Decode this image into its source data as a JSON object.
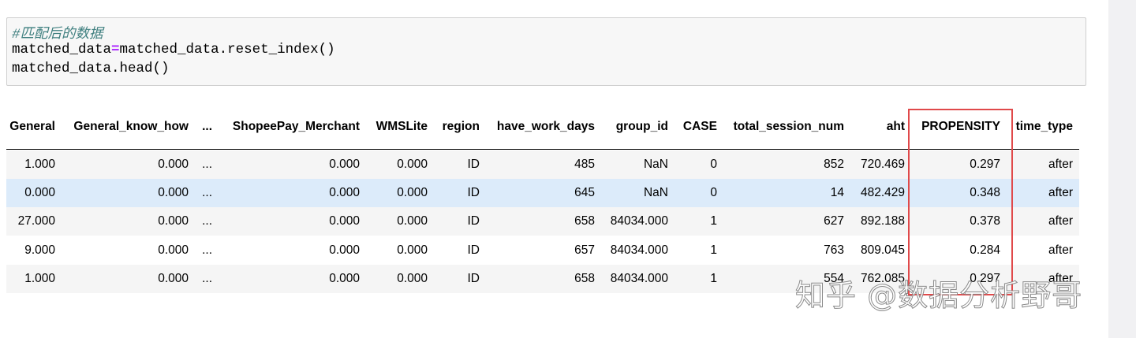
{
  "code": {
    "comment": "#匹配后的数据",
    "lines": [
      [
        "matched_data",
        "=",
        "matched_data.reset_index()"
      ],
      [
        "matched_data.head()"
      ]
    ]
  },
  "table": {
    "header": [
      "General",
      "General_know_how",
      "...",
      "ShopeePay_Merchant",
      "WMSLite",
      "region",
      "have_work_days",
      "group_id",
      "CASE",
      "total_session_num",
      "aht",
      "PROPENSITY",
      "time_type"
    ],
    "rows": [
      [
        "1.000",
        "0.000",
        "...",
        "0.000",
        "0.000",
        "ID",
        "485",
        "NaN",
        "0",
        "852",
        "720.469",
        "0.297",
        "after"
      ],
      [
        "0.000",
        "0.000",
        "...",
        "0.000",
        "0.000",
        "ID",
        "645",
        "NaN",
        "0",
        "14",
        "482.429",
        "0.348",
        "after"
      ],
      [
        "27.000",
        "0.000",
        "...",
        "0.000",
        "0.000",
        "ID",
        "658",
        "84034.000",
        "1",
        "627",
        "892.188",
        "0.378",
        "after"
      ],
      [
        "9.000",
        "0.000",
        "...",
        "0.000",
        "0.000",
        "ID",
        "657",
        "84034.000",
        "1",
        "763",
        "809.045",
        "0.284",
        "after"
      ],
      [
        "1.000",
        "0.000",
        "...",
        "0.000",
        "0.000",
        "ID",
        "658",
        "84034.000",
        "1",
        "554",
        "762.085",
        "0.297",
        "after"
      ]
    ]
  },
  "watermark": "知乎 @数据分析野哥"
}
